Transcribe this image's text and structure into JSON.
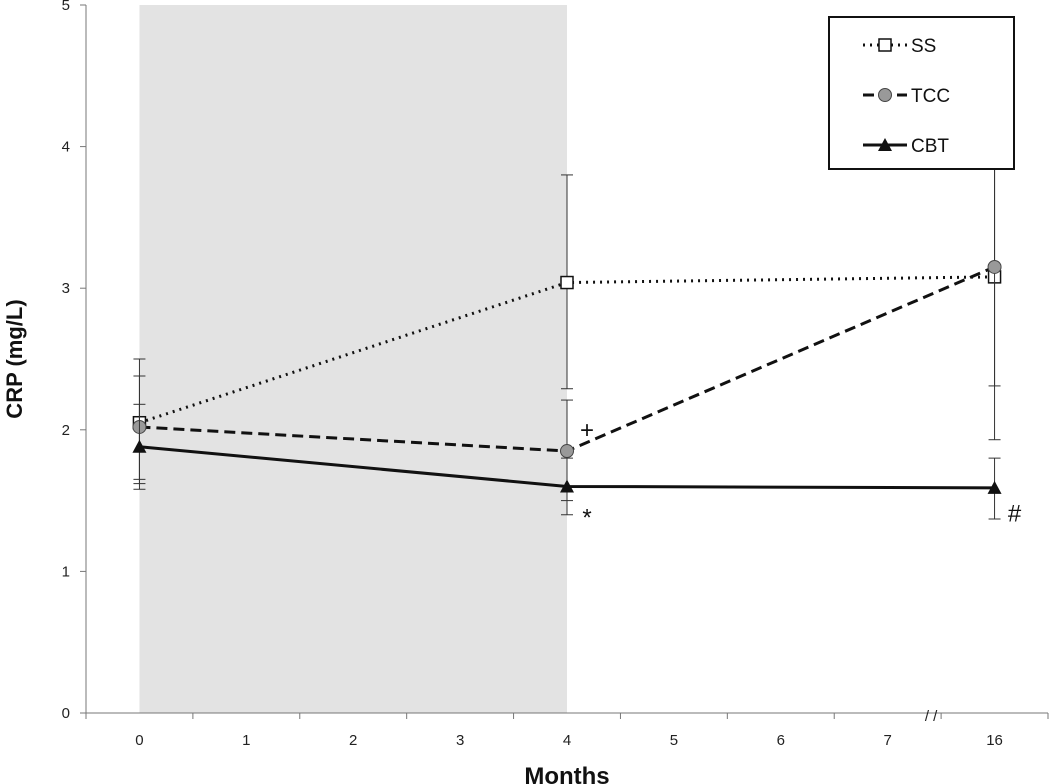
{
  "chart_data": {
    "type": "line",
    "xlabel": "Months",
    "ylabel": "CRP (mg/L)",
    "ylim": [
      0,
      5
    ],
    "y_ticks": [
      "0",
      "1",
      "2",
      "3",
      "4",
      "5"
    ],
    "x_ticks": [
      "0",
      "1",
      "2",
      "3",
      "4",
      "5",
      "6",
      "7",
      "16"
    ],
    "axis_break_marker": "/ /",
    "shaded_region": {
      "from": "0",
      "to": "4",
      "color": "#e3e3e3"
    },
    "grid": false,
    "legend": {
      "placement": "top-right"
    },
    "series": [
      {
        "name": "SS",
        "line_style": "dotted",
        "marker": "open-square",
        "color": "#111111",
        "points": [
          {
            "x": "0",
            "y": 2.05,
            "err_low": 1.62,
            "err_high": 2.5
          },
          {
            "x": "4",
            "y": 3.04,
            "err_low": 2.29,
            "err_high": 3.8
          },
          {
            "x": "16",
            "y": 3.08,
            "err_low": 1.93,
            "err_high": 4.22
          }
        ]
      },
      {
        "name": "TCC",
        "line_style": "dashed",
        "marker": "gray-circle",
        "color": "#111111",
        "points": [
          {
            "x": "0",
            "y": 2.02,
            "err_low": 1.65,
            "err_high": 2.38
          },
          {
            "x": "4",
            "y": 1.85,
            "err_low": 1.5,
            "err_high": 2.21
          },
          {
            "x": "16",
            "y": 3.15,
            "err_low": 2.31,
            "err_high": 3.98
          }
        ]
      },
      {
        "name": "CBT",
        "line_style": "solid",
        "marker": "filled-triangle",
        "color": "#111111",
        "points": [
          {
            "x": "0",
            "y": 1.88,
            "err_low": 1.58,
            "err_high": 2.18
          },
          {
            "x": "4",
            "y": 1.6,
            "err_low": 1.4,
            "err_high": 1.8
          },
          {
            "x": "16",
            "y": 1.59,
            "err_low": 1.37,
            "err_high": 1.8
          }
        ]
      }
    ],
    "annotations": [
      {
        "text": "+",
        "x": "4",
        "y": 2.0
      },
      {
        "text": "*",
        "x": "4",
        "y": 1.38
      },
      {
        "text": "#",
        "x": "16",
        "y": 1.41
      }
    ]
  }
}
